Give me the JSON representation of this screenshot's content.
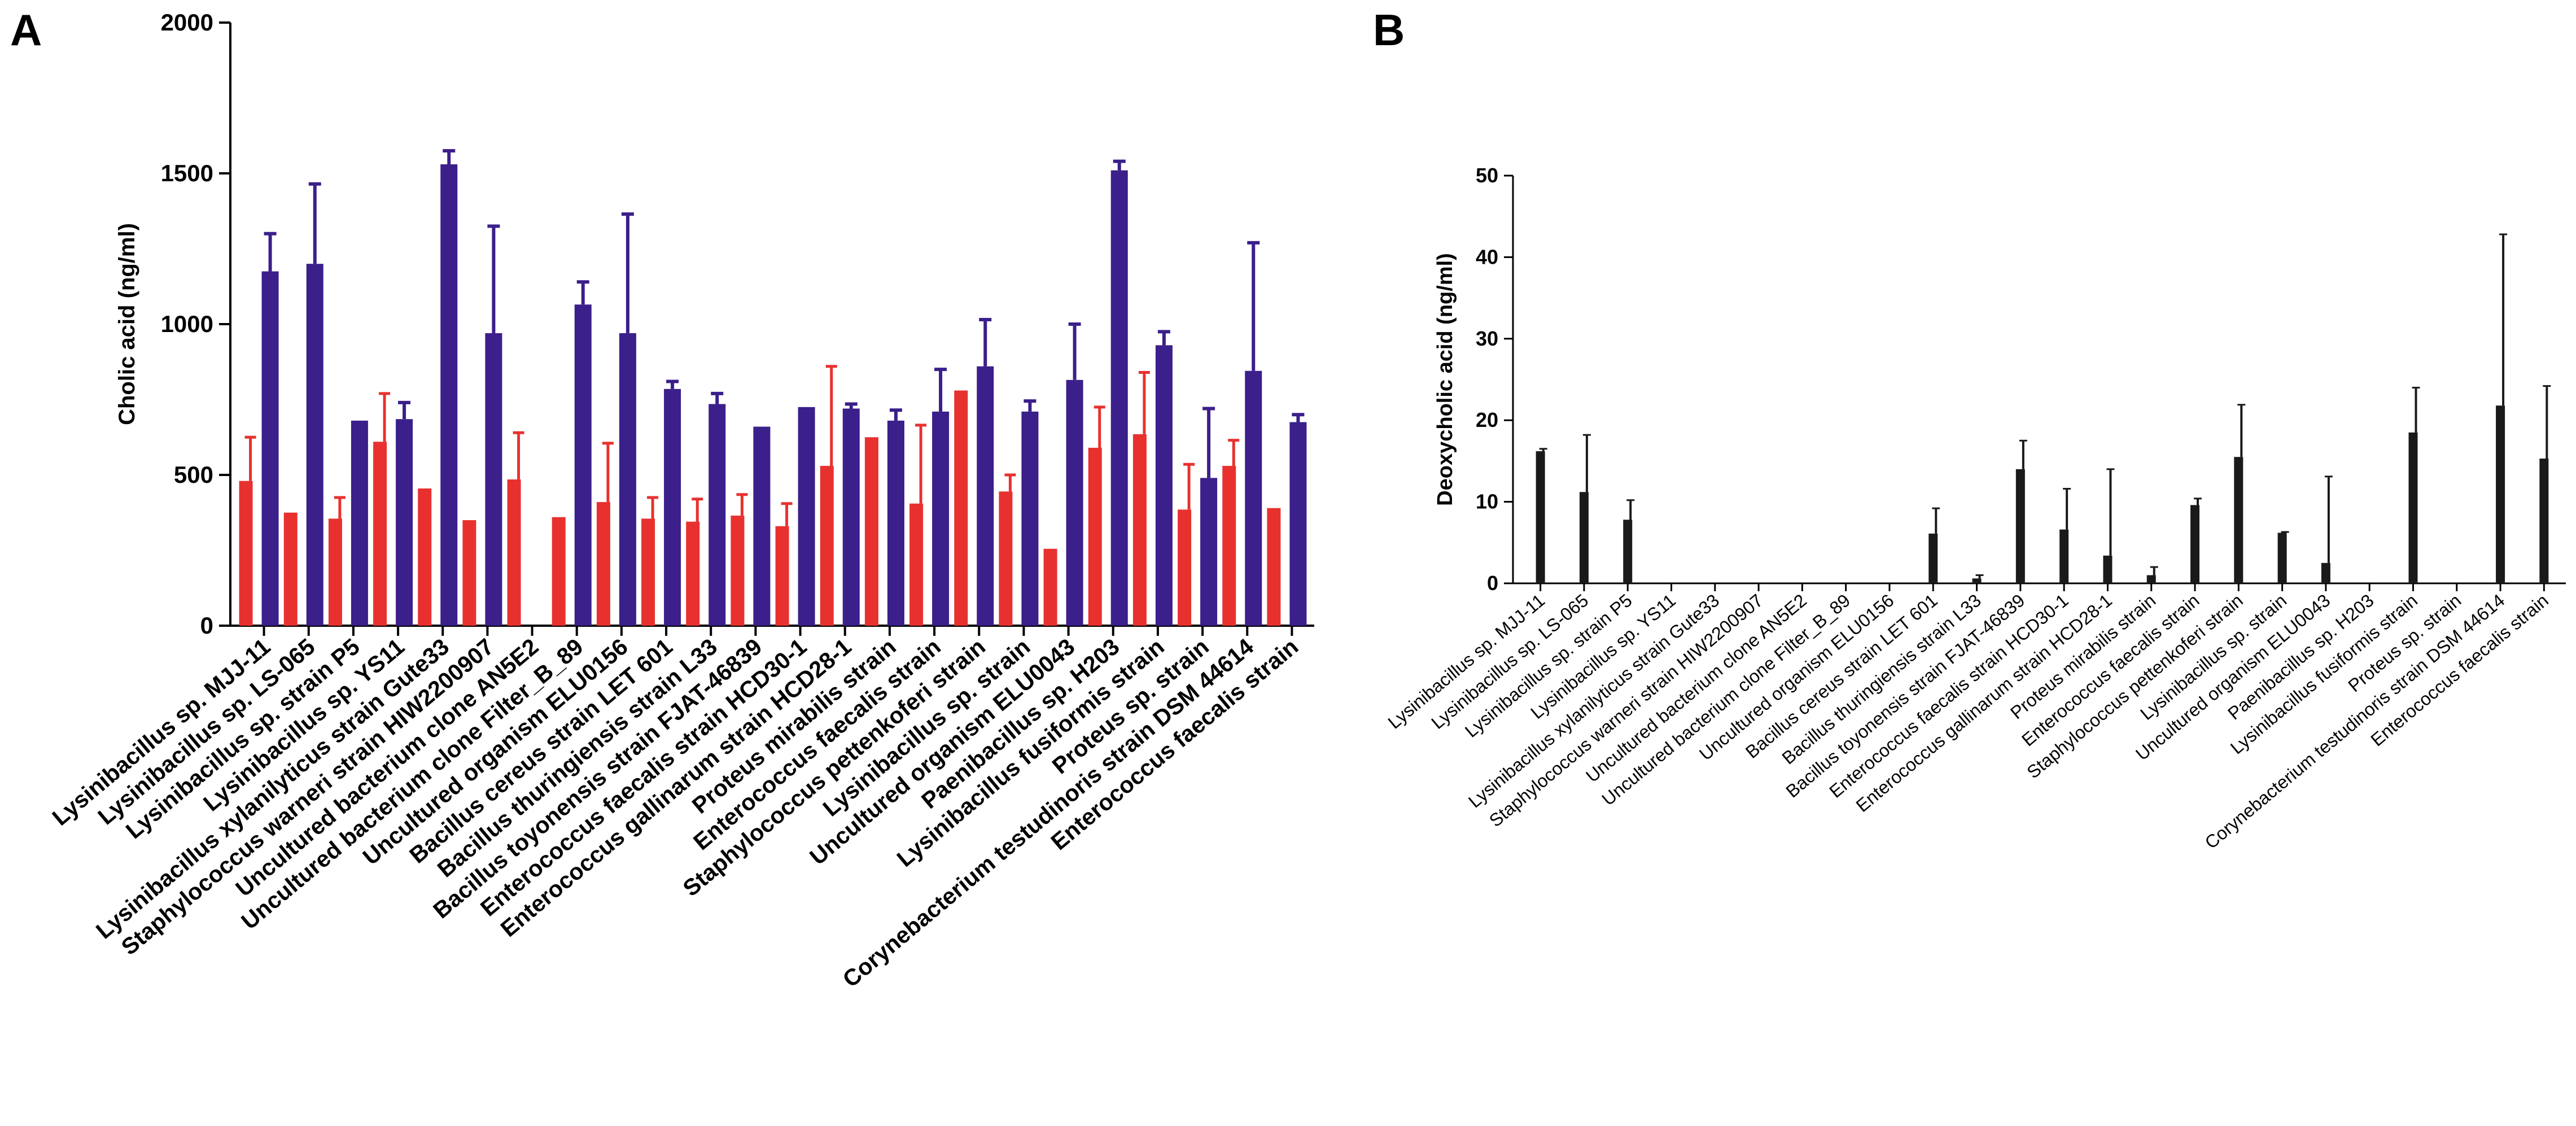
{
  "panels": {
    "a": "A",
    "b": "B"
  },
  "colors": {
    "series1": "#e8312f",
    "series2": "#3b1f8a",
    "barB": "#1a1a1a",
    "axis": "#000000"
  },
  "chart_data": [
    {
      "type": "bar",
      "panel": "A",
      "title": "",
      "xlabel": "",
      "ylabel": "Cholic acid (ng/ml)",
      "ylim": [
        0,
        2000
      ],
      "yticks": [
        "0",
        "500",
        "1000",
        "1500",
        "2000"
      ],
      "categories": [
        "Lysinibacillus sp. MJJ-11",
        "Lysinibacillus sp. LS-065",
        "Lysinibacillus sp. strain P5",
        "Lysinibacillus sp. YS11",
        "Lysinibacillus xylanilyticus strain Gute33",
        "Staphylococcus warneri strain HIW2200907",
        "Uncultured bacterium clone AN5E2",
        "Uncultured bacterium clone Filter_B_89",
        "Uncultured organism ELU0156",
        "Bacillus cereus strain LET 601",
        "Bacillus thuringiensis strain L33",
        "Bacillus toyonensis strain FJAT-46839",
        "Enterococcus faecalis strain HCD30-1",
        "Enterococcus gallinarum strain HCD28-1",
        "Proteus mirabilis strain",
        "Enterococcus faecalis strain",
        "Staphylococcus pettenkoferi strain",
        "Lysinibacillus sp. strain",
        "Uncultured organism ELU0043",
        "Paenibacillus sp. H203",
        "Lysinibacillus fusiformis strain",
        "Proteus sp. strain",
        "Corynebacterium testudinoris strain DSM 44614",
        "Enterococcus faecalis strain"
      ],
      "series": [
        {
          "name": "red",
          "values": [
            480,
            375,
            355,
            610,
            455,
            350,
            485,
            360,
            410,
            355,
            345,
            365,
            330,
            530,
            625,
            405,
            780,
            445,
            255,
            590,
            635,
            385,
            530,
            390
          ],
          "errors": [
            145,
            0,
            70,
            160,
            0,
            0,
            155,
            0,
            195,
            70,
            75,
            70,
            75,
            330,
            0,
            260,
            0,
            55,
            0,
            135,
            205,
            150,
            85,
            0
          ]
        },
        {
          "name": "purple",
          "values": [
            1175,
            1200,
            680,
            685,
            1530,
            970,
            null,
            1065,
            970,
            785,
            735,
            660,
            725,
            720,
            680,
            710,
            860,
            710,
            815,
            1510,
            930,
            490,
            845,
            675
          ],
          "errors": [
            125,
            265,
            0,
            55,
            45,
            355,
            null,
            75,
            395,
            25,
            35,
            0,
            0,
            15,
            35,
            140,
            155,
            35,
            185,
            30,
            45,
            230,
            425,
            25
          ]
        }
      ]
    },
    {
      "type": "bar",
      "panel": "B",
      "title": "",
      "xlabel": "",
      "ylabel": "Deoxycholic acid (ng/ml)",
      "ylim": [
        0,
        50
      ],
      "yticks": [
        "0",
        "10",
        "20",
        "30",
        "40",
        "50"
      ],
      "categories": [
        "Lysinibacillus sp. MJJ-11",
        "Lysinibacillus sp. LS-065",
        "Lysinibacillus sp. strain P5",
        "Lysinibacillus sp. YS11",
        "Lysinibacillus xylanilyticus strain Gute33",
        "Staphylococcus warneri strain HIW2200907",
        "Uncultured bacterium clone AN5E2",
        "Uncultured bacterium clone Filter_B_89",
        "Uncultured organism ELU0156",
        "Bacillus cereus strain LET 601",
        "Bacillus thuringiensis strain L33",
        "Bacillus toyonensis strain FJAT-46839",
        "Enterococcus faecalis strain HCD30-1",
        "Enterococcus gallinarum strain HCD28-1",
        "Proteus mirabilis strain",
        "Enterococcus faecalis strain",
        "Staphylococcus pettenkoferi strain",
        "Lysinibacillus sp. strain",
        "Uncultured organism ELU0043",
        "Paenibacillus sp. H203",
        "Lysinibacillus fusiformis strain",
        "Proteus sp. strain",
        "Corynebacterium testudinoris strain DSM 44614",
        "Enterococcus faecalis strain"
      ],
      "series": [
        {
          "name": "deoxycholic",
          "values": [
            16.2,
            11.2,
            7.8,
            0,
            0,
            0,
            0,
            0,
            0,
            6.1,
            0.6,
            14.0,
            6.6,
            3.4,
            1.0,
            9.6,
            15.5,
            6.2,
            2.5,
            0,
            18.5,
            0,
            21.8,
            15.3
          ],
          "errors": [
            0.3,
            7.0,
            2.4,
            0,
            0,
            0,
            0,
            0,
            0,
            3.1,
            0.4,
            3.5,
            5.0,
            10.6,
            1.0,
            0.8,
            6.4,
            0.1,
            10.6,
            0,
            5.5,
            0,
            21.0,
            8.9
          ]
        }
      ]
    }
  ]
}
